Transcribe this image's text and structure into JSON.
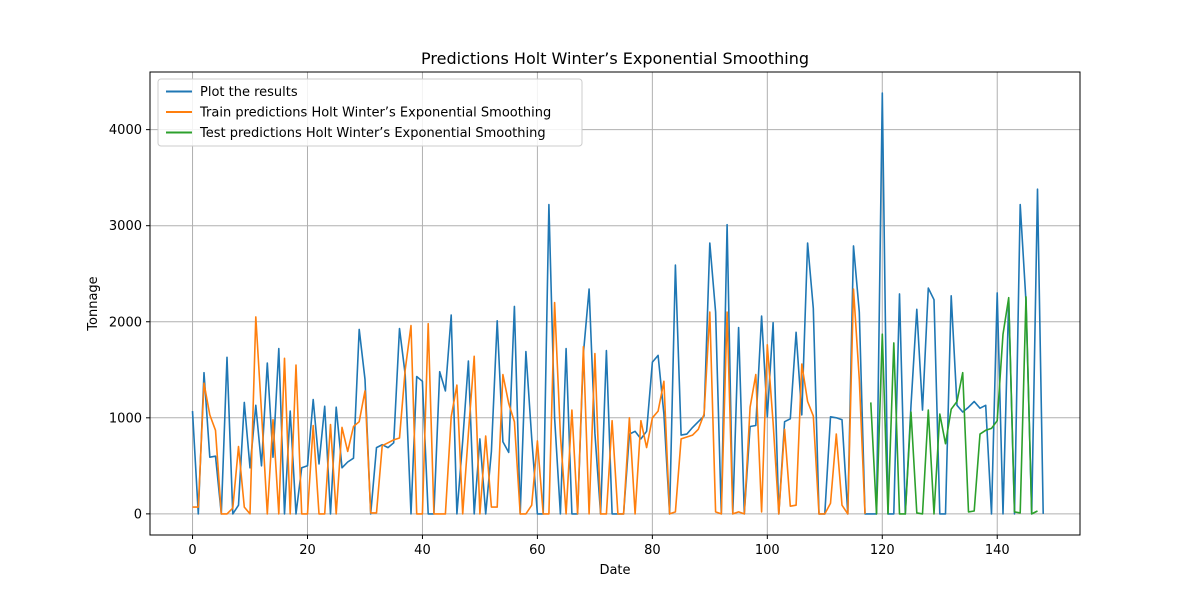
{
  "chart_data": {
    "type": "line",
    "title": "Predictions Holt Winter’s Exponential Smoothing",
    "xlabel": "Date",
    "ylabel": "Tonnage",
    "xlim": [
      -7.4,
      154.4
    ],
    "ylim": [
      -220,
      4600
    ],
    "xticks": [
      0,
      20,
      40,
      60,
      80,
      100,
      120,
      140
    ],
    "yticks": [
      0,
      1000,
      2000,
      3000,
      4000
    ],
    "grid": true,
    "legend_position": "top-left",
    "series": [
      {
        "name": "Plot the results",
        "color": "#1f77b4",
        "x_start": 0,
        "values": [
          1070,
          0,
          1470,
          590,
          600,
          0,
          1630,
          0,
          90,
          1160,
          480,
          1130,
          500,
          1570,
          590,
          1720,
          0,
          1070,
          0,
          480,
          500,
          1190,
          520,
          1120,
          0,
          1110,
          480,
          540,
          580,
          1920,
          1400,
          0,
          690,
          720,
          690,
          740,
          1930,
          1450,
          0,
          1430,
          1380,
          0,
          0,
          1480,
          1280,
          2070,
          0,
          760,
          1590,
          0,
          780,
          0,
          650,
          2010,
          750,
          640,
          2160,
          0,
          1690,
          790,
          0,
          0,
          3220,
          1000,
          0,
          1720,
          0,
          0,
          1670,
          2340,
          840,
          0,
          1700,
          0,
          0,
          0,
          830,
          860,
          780,
          860,
          1580,
          1650,
          1040,
          0,
          2590,
          820,
          830,
          900,
          960,
          1020,
          2820,
          2100,
          0,
          3010,
          0,
          1940,
          0,
          910,
          920,
          2060,
          1010,
          1990,
          0,
          960,
          990,
          1890,
          1030,
          2820,
          2140,
          0,
          0,
          1010,
          1000,
          980,
          0,
          2790,
          2100,
          0,
          0,
          0,
          4380,
          0,
          0,
          2290,
          0,
          1130,
          2130,
          1080,
          2350,
          2230,
          0,
          0,
          2270,
          1130,
          1060,
          1110,
          1170,
          1100,
          1130,
          0,
          2300,
          0,
          2230,
          0,
          3220,
          2210,
          0,
          3380,
          0
        ]
      },
      {
        "name": "Train predictions Holt Winter’s Exponential Smoothing",
        "color": "#ff7f0e",
        "x_start": 0,
        "values": [
          70,
          70,
          1360,
          1030,
          870,
          0,
          0,
          60,
          700,
          70,
          0,
          2050,
          1060,
          0,
          980,
          0,
          1620,
          0,
          1550,
          0,
          0,
          920,
          0,
          0,
          930,
          0,
          900,
          650,
          910,
          960,
          1280,
          10,
          10,
          710,
          740,
          770,
          790,
          1500,
          1960,
          0,
          0,
          1980,
          0,
          0,
          0,
          1010,
          1340,
          0,
          840,
          1640,
          0,
          810,
          70,
          70,
          1450,
          1150,
          960,
          0,
          0,
          90,
          760,
          0,
          0,
          2200,
          820,
          0,
          1080,
          0,
          1740,
          0,
          1670,
          0,
          0,
          970,
          0,
          0,
          1000,
          0,
          970,
          690,
          1000,
          1070,
          1380,
          0,
          20,
          780,
          800,
          820,
          880,
          1040,
          2100,
          20,
          0,
          2100,
          0,
          20,
          0,
          1110,
          1450,
          20,
          1760,
          950,
          0,
          880,
          80,
          90,
          1560,
          1170,
          1020,
          0,
          0,
          110,
          830,
          90,
          0,
          2340,
          1400,
          0
        ]
      },
      {
        "name": "Test predictions Holt Winter’s Exponential Smoothing",
        "color": "#2ca02c",
        "x_start": 118,
        "values": [
          1160,
          0,
          1870,
          0,
          1780,
          0,
          0,
          1060,
          10,
          0,
          1080,
          0,
          1040,
          730,
          1090,
          1170,
          1470,
          20,
          30,
          830,
          870,
          890,
          970,
          1870,
          2250,
          20,
          10,
          2260,
          0,
          30
        ]
      }
    ]
  }
}
